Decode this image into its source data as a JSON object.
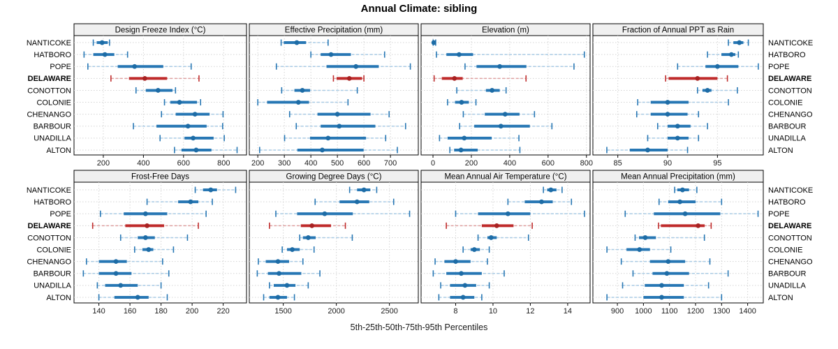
{
  "title": "Annual Climate: sibling",
  "footer": "5th-25th-50th-75th-95th Percentiles",
  "sites": [
    "NANTICOKE",
    "HATBORO",
    "POPE",
    "DELAWARE",
    "CONOTTON",
    "COLONIE",
    "CHENANGO",
    "BARBOUR",
    "UNADILLA",
    "ALTON"
  ],
  "highlight_site": "DELAWARE",
  "colors": {
    "series": "#2777b4",
    "series_dot": "#1d6ca6",
    "series_light": "#a9cbe5",
    "highlight": "#bf2b2b",
    "highlight_dot": "#a82222",
    "highlight_light": "#dfa0a0",
    "strip_bg": "#f0f0f0",
    "panel_bg": "#ffffff",
    "border": "#000000",
    "grid": "#d4d4d4",
    "tick_text": "#1a1a1a"
  },
  "chart_data": [
    {
      "type": "dotplot-percentiles",
      "title": "Design Freeze Index (°C)",
      "ticks": [
        200,
        400,
        600,
        800
      ],
      "xlim": [
        54,
        914
      ],
      "values": [
        [
          150,
          167,
          194,
          222,
          231
        ],
        [
          104,
          150,
          208,
          255,
          321
        ],
        [
          123,
          272,
          356,
          499,
          638
        ],
        [
          238,
          328,
          407,
          518,
          677
        ],
        [
          363,
          412,
          473,
          545,
          560
        ],
        [
          505,
          534,
          580,
          667,
          685
        ],
        [
          490,
          561,
          657,
          730,
          797
        ],
        [
          350,
          465,
          622,
          715,
          795
        ],
        [
          483,
          605,
          648,
          750,
          803
        ],
        [
          555,
          590,
          663,
          739,
          867
        ]
      ]
    },
    {
      "type": "dotplot-percentiles",
      "title": "Effective Precipitation (mm)",
      "ticks": [
        200,
        300,
        400,
        500,
        600,
        700
      ],
      "xlim": [
        168,
        805
      ],
      "values": [
        [
          288,
          298,
          347,
          382,
          465
        ],
        [
          400,
          437,
          476,
          551,
          678
        ],
        [
          270,
          459,
          570,
          656,
          775
        ],
        [
          485,
          497,
          545,
          593,
          600
        ],
        [
          290,
          338,
          368,
          397,
          575
        ],
        [
          200,
          235,
          353,
          393,
          540
        ],
        [
          320,
          425,
          500,
          625,
          695
        ],
        [
          345,
          437,
          507,
          643,
          757
        ],
        [
          301,
          397,
          465,
          608,
          682
        ],
        [
          207,
          349,
          443,
          599,
          726
        ]
      ]
    },
    {
      "type": "dotplot-percentiles",
      "title": "Elevation (m)",
      "ticks": [
        0,
        200,
        400,
        600,
        800
      ],
      "xlim": [
        -62,
        819
      ],
      "values": [
        [
          1,
          2,
          4,
          8,
          14
        ],
        [
          18,
          70,
          136,
          209,
          789
        ],
        [
          167,
          227,
          348,
          487,
          735
        ],
        [
          6,
          46,
          112,
          155,
          485
        ],
        [
          124,
          276,
          308,
          348,
          381
        ],
        [
          76,
          115,
          149,
          187,
          224
        ],
        [
          158,
          270,
          376,
          451,
          529
        ],
        [
          139,
          215,
          354,
          505,
          620
        ],
        [
          34,
          76,
          163,
          306,
          448
        ],
        [
          88,
          110,
          146,
          233,
          453
        ]
      ]
    },
    {
      "type": "dotplot-percentiles",
      "title": "Fraction of Annual PPT as Rain",
      "ticks": [
        85,
        90,
        95
      ],
      "xlim": [
        82.5,
        99.6
      ],
      "values": [
        [
          96.1,
          96.6,
          97.2,
          97.6,
          98.1
        ],
        [
          94,
          95.4,
          96.4,
          96.8,
          97.1
        ],
        [
          91,
          93.8,
          95,
          97.1,
          99.1
        ],
        [
          89.8,
          90.1,
          93,
          95,
          96
        ],
        [
          93,
          93.5,
          94,
          94.4,
          97
        ],
        [
          87,
          88.3,
          90,
          92.1,
          96.1
        ],
        [
          86.9,
          88.3,
          90,
          92,
          93.1
        ],
        [
          89,
          90,
          91,
          92.3,
          94
        ],
        [
          88,
          90,
          91,
          92.1,
          93.1
        ],
        [
          83.9,
          86.2,
          88,
          90,
          92
        ]
      ]
    },
    {
      "type": "dotplot-percentiles",
      "title": "Frost-Free Days",
      "ticks": [
        140,
        160,
        180,
        200,
        220
      ],
      "xlim": [
        124,
        235
      ],
      "values": [
        [
          202,
          207,
          212,
          216,
          228
        ],
        [
          171,
          191,
          199,
          204,
          213
        ],
        [
          141,
          156,
          170,
          184,
          209
        ],
        [
          136,
          157,
          171,
          182,
          204
        ],
        [
          154,
          165,
          170,
          176,
          197
        ],
        [
          163,
          168,
          172,
          175,
          188
        ],
        [
          132,
          140,
          151,
          158,
          181
        ],
        [
          130,
          140,
          151,
          161,
          185
        ],
        [
          139,
          144,
          154,
          165,
          180
        ],
        [
          140,
          150,
          165,
          172,
          184
        ]
      ]
    },
    {
      "type": "dotplot-percentiles",
      "title": "Growing Degree Days (°C)",
      "ticks": [
        1500,
        2000,
        2500
      ],
      "xlim": [
        1180,
        2772
      ],
      "values": [
        [
          2125,
          2195,
          2260,
          2320,
          2380
        ],
        [
          1800,
          2030,
          2195,
          2310,
          2540
        ],
        [
          1430,
          1630,
          1890,
          2155,
          2690
        ],
        [
          1370,
          1665,
          1770,
          1950,
          2085
        ],
        [
          1655,
          1685,
          1735,
          1805,
          2150
        ],
        [
          1490,
          1535,
          1585,
          1655,
          1790
        ],
        [
          1265,
          1335,
          1450,
          1555,
          1685
        ],
        [
          1255,
          1355,
          1460,
          1670,
          1845
        ],
        [
          1370,
          1410,
          1535,
          1615,
          1735
        ],
        [
          1315,
          1370,
          1450,
          1535,
          1605
        ]
      ]
    },
    {
      "type": "dotplot-percentiles",
      "title": "Mean Annual Air Temperature (°C)",
      "ticks": [
        8,
        10,
        12,
        14
      ],
      "xlim": [
        6.15,
        15.2
      ],
      "values": [
        [
          12.7,
          12.9,
          13.1,
          13.4,
          13.7
        ],
        [
          10.8,
          11.7,
          12.6,
          13.2,
          14.2
        ],
        [
          8,
          9.2,
          10.8,
          12,
          14.9
        ],
        [
          7.5,
          9.4,
          10.2,
          11.1,
          12.1
        ],
        [
          9.2,
          9.7,
          9.9,
          10.2,
          11.9
        ],
        [
          8.4,
          8.8,
          9,
          9.3,
          9.8
        ],
        [
          6.9,
          7.4,
          8,
          8.8,
          9.7
        ],
        [
          6.8,
          7.5,
          8.3,
          9.4,
          10.6
        ],
        [
          7.2,
          7.7,
          8.5,
          9.1,
          9.8
        ],
        [
          7.1,
          7.7,
          8.4,
          9,
          9.4
        ]
      ]
    },
    {
      "type": "dotplot-percentiles",
      "title": "Mean Annual Precipitation (mm)",
      "ticks": [
        900,
        1000,
        1100,
        1200,
        1300,
        1400
      ],
      "xlim": [
        806,
        1460
      ],
      "values": [
        [
          1120,
          1130,
          1150,
          1175,
          1205
        ],
        [
          1060,
          1095,
          1140,
          1200,
          1300
        ],
        [
          930,
          1040,
          1160,
          1295,
          1440
        ],
        [
          1058,
          1067,
          1210,
          1235,
          1260
        ],
        [
          968,
          983,
          1007,
          1048,
          1234
        ],
        [
          860,
          935,
          985,
          1025,
          1105
        ],
        [
          915,
          1025,
          1095,
          1160,
          1255
        ],
        [
          960,
          1035,
          1090,
          1175,
          1325
        ],
        [
          920,
          1005,
          1070,
          1155,
          1250
        ],
        [
          860,
          1000,
          1070,
          1155,
          1300
        ]
      ]
    }
  ]
}
